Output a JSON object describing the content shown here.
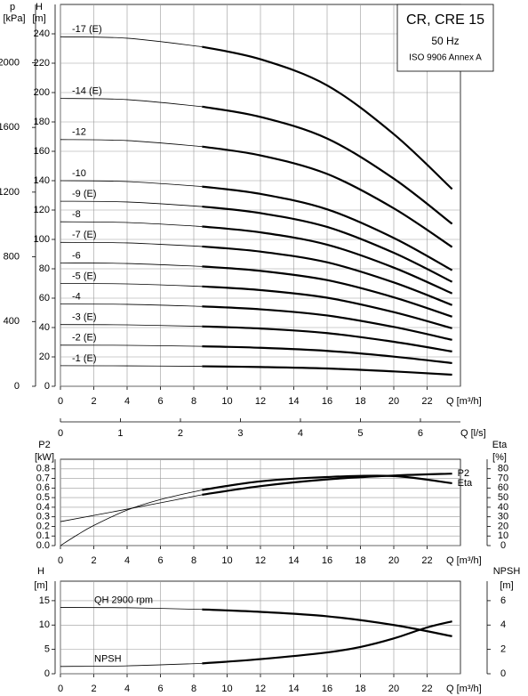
{
  "chart_data": [
    {
      "type": "line",
      "color": "#000000",
      "grid": true,
      "bold_from": 8.5,
      "legend_box": {
        "title": "CR, CRE 15",
        "lines": [
          "50 Hz",
          "ISO 9906 Annex A"
        ]
      },
      "y_label": {
        "symbol": "H",
        "unit": "[m]"
      },
      "p_axis": {
        "symbol": "p",
        "unit": "[kPa]",
        "lim": [
          0,
          2360
        ],
        "ticks": [
          0,
          400,
          800,
          1200,
          1600,
          2000
        ]
      },
      "x_label": "Q [m³/h]",
      "xlim": [
        0,
        24
      ],
      "xticks": [
        0,
        2,
        4,
        6,
        8,
        10,
        12,
        14,
        16,
        18,
        20,
        22
      ],
      "secondary_x": {
        "label": "Q [l/s]",
        "lim": [
          0,
          6.667
        ],
        "ticks": [
          0,
          1,
          2,
          3,
          4,
          5,
          6
        ]
      },
      "ylim": [
        0,
        260
      ],
      "yticks": [
        0,
        20,
        40,
        60,
        80,
        100,
        120,
        140,
        160,
        180,
        200,
        220,
        240
      ],
      "x": [
        0,
        4,
        8.5,
        12,
        16,
        20,
        23.5
      ],
      "series": [
        {
          "name": "-17 (E)",
          "values": [
            238,
            237,
            231.2,
            222.7,
            204.9,
            171.7,
            134.3
          ]
        },
        {
          "name": "-14 (E)",
          "values": [
            196,
            195.2,
            190.4,
            183.4,
            168.7,
            141.4,
            110.6
          ]
        },
        {
          "name": "-12",
          "values": [
            168,
            167.3,
            163.2,
            157.2,
            144.6,
            121.2,
            94.8
          ]
        },
        {
          "name": "-10",
          "values": [
            140,
            139.4,
            136,
            131,
            120.5,
            101,
            79
          ]
        },
        {
          "name": "-9 (E)",
          "values": [
            126,
            125.5,
            122.4,
            117.9,
            108.5,
            90.9,
            71.1
          ]
        },
        {
          "name": "-8",
          "values": [
            112,
            111.5,
            108.8,
            104.8,
            96.4,
            80.8,
            63.2
          ]
        },
        {
          "name": "-7 (E)",
          "values": [
            98,
            97.6,
            95.2,
            91.7,
            84.4,
            70.7,
            55.3
          ]
        },
        {
          "name": "-6",
          "values": [
            84,
            83.6,
            81.6,
            78.6,
            72.3,
            60.6,
            47.4
          ]
        },
        {
          "name": "-5 (E)",
          "values": [
            70,
            69.7,
            68,
            65.5,
            60.3,
            50.5,
            39.5
          ]
        },
        {
          "name": "-4",
          "values": [
            56,
            55.8,
            54.4,
            52.4,
            48.2,
            40.4,
            31.6
          ]
        },
        {
          "name": "-3 (E)",
          "values": [
            42,
            41.8,
            40.8,
            39.3,
            36.2,
            30.3,
            23.7
          ]
        },
        {
          "name": "-2 (E)",
          "values": [
            28,
            27.9,
            27.2,
            26.2,
            24.1,
            20.2,
            15.8
          ]
        },
        {
          "name": "-1 (E)",
          "values": [
            14,
            13.9,
            13.6,
            13.1,
            12.1,
            10.1,
            7.9
          ]
        }
      ]
    },
    {
      "type": "line",
      "color": "#000000",
      "grid": true,
      "bold_from": 8.5,
      "y_label": {
        "symbol": "P2",
        "unit": "[kW]"
      },
      "y2_label": {
        "symbol": "Eta",
        "unit": "[%]"
      },
      "x_label": "Q [m³/h]",
      "xlim": [
        0,
        24
      ],
      "xticks": [
        0,
        2,
        4,
        6,
        8,
        10,
        12,
        14,
        16,
        18,
        20,
        22
      ],
      "ylim": [
        0,
        0.9
      ],
      "yticks": [
        {
          "value": 0,
          "label": "0.0"
        },
        0.1,
        0.2,
        0.3,
        0.4,
        0.5,
        0.6,
        0.7,
        0.8
      ],
      "y2lim": [
        0,
        90
      ],
      "y2ticks": [
        0,
        10,
        20,
        30,
        40,
        50,
        60,
        70,
        80
      ],
      "series": [
        {
          "name": "P2",
          "x": [
            0,
            4,
            8.5,
            12,
            16,
            20,
            23.5
          ],
          "values": [
            0.25,
            0.38,
            0.53,
            0.62,
            0.69,
            0.73,
            0.75
          ]
        },
        {
          "name": "Eta",
          "axis": "y2",
          "x": [
            0,
            1,
            2,
            4,
            6,
            8.5,
            12,
            16,
            20,
            23.5
          ],
          "values": [
            0,
            11,
            21,
            37,
            48,
            58,
            67,
            71.5,
            72.5,
            65
          ]
        }
      ]
    },
    {
      "type": "line",
      "color": "#000000",
      "grid": true,
      "bold_from": 8.5,
      "y_label": {
        "symbol": "H",
        "unit": "[m]"
      },
      "y2_label": {
        "symbol": "NPSH",
        "unit": "[m]"
      },
      "x_label": "Q [m³/h]",
      "xlim": [
        0,
        24
      ],
      "xticks": [
        0,
        2,
        4,
        6,
        8,
        10,
        12,
        14,
        16,
        18,
        20,
        22
      ],
      "ylim": [
        0,
        19
      ],
      "yticks": [
        0,
        5,
        10,
        15
      ],
      "y2lim": [
        0,
        7.6
      ],
      "y2ticks": [
        0,
        2,
        4,
        6
      ],
      "series": [
        {
          "name": "QH 2900 rpm",
          "x": [
            0,
            4,
            8.5,
            12,
            16,
            20,
            23.5
          ],
          "values": [
            13.6,
            13.55,
            13.2,
            12.7,
            11.8,
            10,
            7.7
          ]
        },
        {
          "name": "NPSH",
          "axis": "y2",
          "x": [
            0,
            4,
            8.5,
            12,
            16,
            18,
            20,
            22,
            23.5
          ],
          "values": [
            0.6,
            0.65,
            0.85,
            1.2,
            1.75,
            2.2,
            2.9,
            3.8,
            4.3
          ]
        }
      ]
    }
  ]
}
